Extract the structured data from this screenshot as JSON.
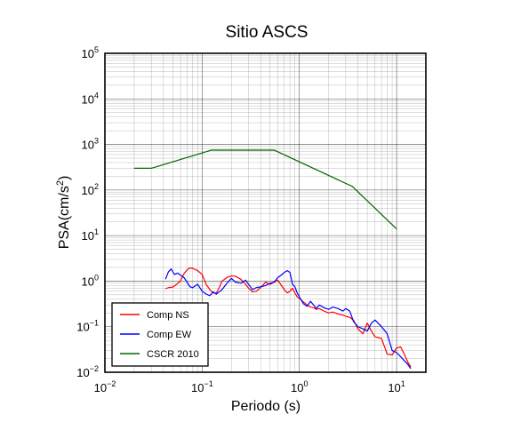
{
  "chart_data": {
    "type": "line",
    "title": "Sitio ASCS",
    "xlabel": "Periodo (s)",
    "ylabel": {
      "base": "PSA(cm/s",
      "sup": "2",
      "close": ")"
    },
    "x_scale": "log",
    "y_scale": "log",
    "xlim": [
      0.01,
      20
    ],
    "ylim": [
      0.01,
      100000
    ],
    "grid": true,
    "legend_position": "bottom-left",
    "x_ticks": [
      {
        "base": "10",
        "exp": "−2",
        "value": 0.01
      },
      {
        "base": "10",
        "exp": "−1",
        "value": 0.1
      },
      {
        "base": "10",
        "exp": "0",
        "value": 1
      },
      {
        "base": "10",
        "exp": "1",
        "value": 10
      }
    ],
    "y_ticks": [
      {
        "base": "10",
        "exp": "−2",
        "value": 0.01
      },
      {
        "base": "10",
        "exp": "−1",
        "value": 0.1
      },
      {
        "base": "10",
        "exp": "0",
        "value": 1
      },
      {
        "base": "10",
        "exp": "1",
        "value": 10
      },
      {
        "base": "10",
        "exp": "2",
        "value": 100
      },
      {
        "base": "10",
        "exp": "3",
        "value": 1000
      },
      {
        "base": "10",
        "exp": "4",
        "value": 10000
      },
      {
        "base": "10",
        "exp": "5",
        "value": 100000
      }
    ],
    "series": [
      {
        "name": "Comp NS",
        "color": "#ff0000",
        "points": [
          [
            0.042,
            0.68
          ],
          [
            0.045,
            0.72
          ],
          [
            0.05,
            0.74
          ],
          [
            0.055,
            0.86
          ],
          [
            0.06,
            1.02
          ],
          [
            0.065,
            1.45
          ],
          [
            0.07,
            1.78
          ],
          [
            0.075,
            1.95
          ],
          [
            0.08,
            1.9
          ],
          [
            0.09,
            1.7
          ],
          [
            0.1,
            1.4
          ],
          [
            0.11,
            0.85
          ],
          [
            0.12,
            0.65
          ],
          [
            0.13,
            0.55
          ],
          [
            0.14,
            0.55
          ],
          [
            0.15,
            0.72
          ],
          [
            0.16,
            1.0
          ],
          [
            0.18,
            1.2
          ],
          [
            0.2,
            1.3
          ],
          [
            0.22,
            1.28
          ],
          [
            0.25,
            1.1
          ],
          [
            0.28,
            0.85
          ],
          [
            0.3,
            0.7
          ],
          [
            0.33,
            0.58
          ],
          [
            0.36,
            0.6
          ],
          [
            0.4,
            0.72
          ],
          [
            0.45,
            0.95
          ],
          [
            0.5,
            0.85
          ],
          [
            0.55,
            0.95
          ],
          [
            0.6,
            1.05
          ],
          [
            0.65,
            0.82
          ],
          [
            0.7,
            0.65
          ],
          [
            0.75,
            0.55
          ],
          [
            0.8,
            0.6
          ],
          [
            0.85,
            0.7
          ],
          [
            0.9,
            0.55
          ],
          [
            0.95,
            0.45
          ],
          [
            1.0,
            0.42
          ],
          [
            1.1,
            0.35
          ],
          [
            1.2,
            0.3
          ],
          [
            1.3,
            0.27
          ],
          [
            1.4,
            0.26
          ],
          [
            1.5,
            0.24
          ],
          [
            1.6,
            0.25
          ],
          [
            1.8,
            0.22
          ],
          [
            2.0,
            0.2
          ],
          [
            2.2,
            0.21
          ],
          [
            2.5,
            0.19
          ],
          [
            2.8,
            0.18
          ],
          [
            3.0,
            0.17
          ],
          [
            3.3,
            0.16
          ],
          [
            3.6,
            0.14
          ],
          [
            4.0,
            0.09
          ],
          [
            4.5,
            0.07
          ],
          [
            5.0,
            0.12
          ],
          [
            5.5,
            0.08
          ],
          [
            6.0,
            0.06
          ],
          [
            7.0,
            0.055
          ],
          [
            8.0,
            0.025
          ],
          [
            9.0,
            0.024
          ],
          [
            10.0,
            0.034
          ],
          [
            11.0,
            0.036
          ],
          [
            12.0,
            0.025
          ],
          [
            13.0,
            0.017
          ],
          [
            14.0,
            0.013
          ]
        ]
      },
      {
        "name": "Comp EW",
        "color": "#0000ff",
        "points": [
          [
            0.042,
            1.1
          ],
          [
            0.045,
            1.6
          ],
          [
            0.048,
            1.85
          ],
          [
            0.052,
            1.4
          ],
          [
            0.056,
            1.5
          ],
          [
            0.06,
            1.35
          ],
          [
            0.065,
            1.2
          ],
          [
            0.07,
            0.95
          ],
          [
            0.075,
            0.75
          ],
          [
            0.08,
            0.72
          ],
          [
            0.09,
            0.85
          ],
          [
            0.1,
            0.6
          ],
          [
            0.11,
            0.52
          ],
          [
            0.12,
            0.48
          ],
          [
            0.13,
            0.58
          ],
          [
            0.14,
            0.52
          ],
          [
            0.15,
            0.58
          ],
          [
            0.16,
            0.65
          ],
          [
            0.18,
            0.9
          ],
          [
            0.2,
            1.15
          ],
          [
            0.22,
            0.95
          ],
          [
            0.25,
            0.9
          ],
          [
            0.28,
            1.05
          ],
          [
            0.3,
            0.85
          ],
          [
            0.33,
            0.65
          ],
          [
            0.36,
            0.72
          ],
          [
            0.4,
            0.75
          ],
          [
            0.45,
            0.8
          ],
          [
            0.5,
            0.9
          ],
          [
            0.55,
            0.95
          ],
          [
            0.6,
            1.2
          ],
          [
            0.65,
            1.35
          ],
          [
            0.7,
            1.55
          ],
          [
            0.75,
            1.7
          ],
          [
            0.8,
            1.55
          ],
          [
            0.85,
            0.85
          ],
          [
            0.9,
            0.75
          ],
          [
            0.95,
            0.55
          ],
          [
            1.0,
            0.45
          ],
          [
            1.1,
            0.32
          ],
          [
            1.2,
            0.28
          ],
          [
            1.3,
            0.36
          ],
          [
            1.4,
            0.3
          ],
          [
            1.5,
            0.25
          ],
          [
            1.6,
            0.3
          ],
          [
            1.8,
            0.26
          ],
          [
            2.0,
            0.24
          ],
          [
            2.2,
            0.27
          ],
          [
            2.5,
            0.25
          ],
          [
            2.8,
            0.22
          ],
          [
            3.0,
            0.25
          ],
          [
            3.3,
            0.22
          ],
          [
            3.6,
            0.13
          ],
          [
            4.0,
            0.1
          ],
          [
            4.5,
            0.09
          ],
          [
            5.0,
            0.08
          ],
          [
            5.5,
            0.12
          ],
          [
            6.0,
            0.14
          ],
          [
            7.0,
            0.1
          ],
          [
            8.0,
            0.07
          ],
          [
            9.0,
            0.03
          ],
          [
            10.0,
            0.027
          ],
          [
            11.0,
            0.022
          ],
          [
            12.0,
            0.018
          ],
          [
            13.0,
            0.015
          ],
          [
            14.0,
            0.012
          ]
        ]
      },
      {
        "name": "CSCR 2010",
        "color": "#006600",
        "points": [
          [
            0.02,
            300
          ],
          [
            0.03,
            300
          ],
          [
            0.125,
            750
          ],
          [
            0.55,
            750
          ],
          [
            3.5,
            120
          ],
          [
            10.0,
            14
          ]
        ]
      }
    ]
  }
}
